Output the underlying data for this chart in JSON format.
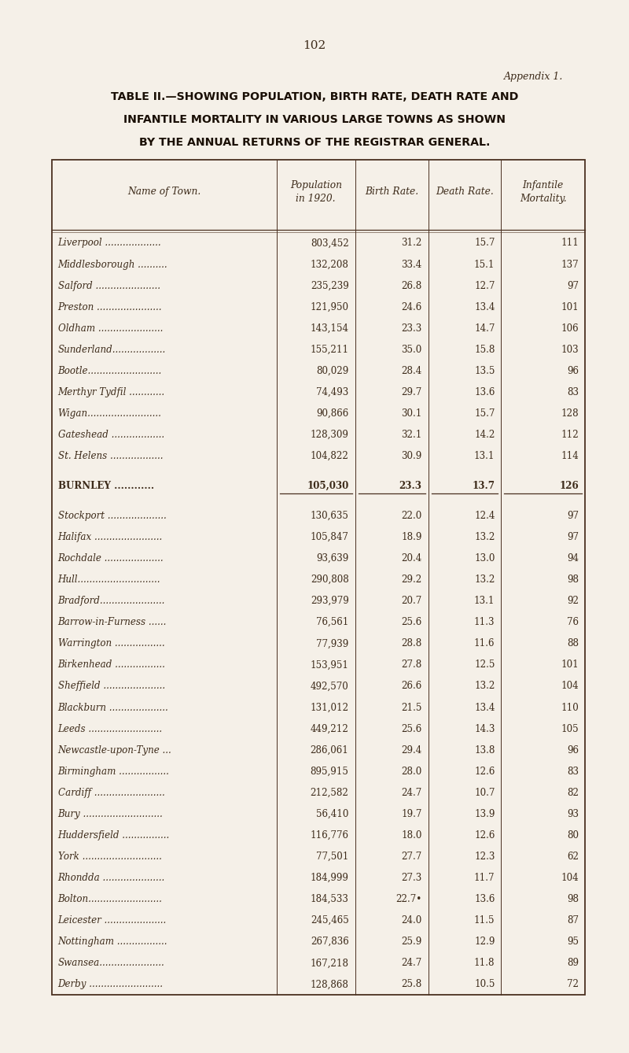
{
  "page_number": "102",
  "appendix_label": "Appendix 1.",
  "title_line1": "TABLE II.—SHOWING POPULATION, BIRTH RATE, DEATH RATE AND",
  "title_line2": "INFANTILE MORTALITY IN VARIOUS LARGE TOWNS AS SHOWN",
  "title_line3": "BY THE ANNUAL RETURNS OF THE REGISTRAR GENERAL.",
  "col_headers": [
    "Name of Town.",
    "Population\nin 1920.",
    "Birth Rate.",
    "Death Rate.",
    "Infantile\nMortality."
  ],
  "rows": [
    [
      "Liverpool",
      "803,452",
      "31.2",
      "15.7",
      "111"
    ],
    [
      "Middlesborough",
      "132,208",
      "33.4",
      "15.1",
      "137"
    ],
    [
      "Salford",
      "235,239",
      "26.8",
      "12.7",
      "97"
    ],
    [
      "Preston",
      "121,950",
      "24.6",
      "13.4",
      "101"
    ],
    [
      "Oldham",
      "143,154",
      "23.3",
      "14.7",
      "106"
    ],
    [
      "Sunderland",
      "155,211",
      "35.0",
      "15.8",
      "103"
    ],
    [
      "Bootle",
      "80,029",
      "28.4",
      "13.5",
      "96"
    ],
    [
      "Merthyr Tydfil",
      "74,493",
      "29.7",
      "13.6",
      "83"
    ],
    [
      "Wigan",
      "90,866",
      "30.1",
      "15.7",
      "128"
    ],
    [
      "Gateshead",
      "128,309",
      "32.1",
      "14.2",
      "112"
    ],
    [
      "St. Helens",
      "104,822",
      "30.9",
      "13.1",
      "114"
    ],
    [
      "BURNLEY",
      "105,030",
      "23.3",
      "13.7",
      "126"
    ],
    [
      "Stockport",
      "130,635",
      "22.0",
      "12.4",
      "97"
    ],
    [
      "Halifax",
      "105,847",
      "18.9",
      "13.2",
      "97"
    ],
    [
      "Rochdale",
      "93,639",
      "20.4",
      "13.0",
      "94"
    ],
    [
      "Hull",
      "290,808",
      "29.2",
      "13.2",
      "98"
    ],
    [
      "Bradford",
      "293,979",
      "20.7",
      "13.1",
      "92"
    ],
    [
      "Barrow-in-Furness",
      "76,561",
      "25.6",
      "11.3",
      "76"
    ],
    [
      "Warrington",
      "77,939",
      "28.8",
      "11.6",
      "88"
    ],
    [
      "Birkenhead",
      "153,951",
      "27.8",
      "12.5",
      "101"
    ],
    [
      "Sheffield",
      "492,570",
      "26.6",
      "13.2",
      "104"
    ],
    [
      "Blackburn",
      "131,012",
      "21.5",
      "13.4",
      "110"
    ],
    [
      "Leeds",
      "449,212",
      "25.6",
      "14.3",
      "105"
    ],
    [
      "Newcastle-upon-Tyne ...",
      "286,061",
      "29.4",
      "13.8",
      "96"
    ],
    [
      "Birmingham",
      "895,915",
      "28.0",
      "12.6",
      "83"
    ],
    [
      "Cardiff",
      "212,582",
      "24.7",
      "10.7",
      "82"
    ],
    [
      "Bury",
      "56,410",
      "19.7",
      "13.9",
      "93"
    ],
    [
      "Huddersfield",
      "116,776",
      "18.0",
      "12.6",
      "80"
    ],
    [
      "York",
      "77,501",
      "27.7",
      "12.3",
      "62"
    ],
    [
      "Rhondda",
      "184,999",
      "27.3",
      "11.7",
      "104"
    ],
    [
      "Bolton",
      "184,533",
      "22.7•",
      "13.6",
      "98"
    ],
    [
      "Leicester",
      "245,465",
      "24.0",
      "11.5",
      "87"
    ],
    [
      "Nottingham",
      "267,836",
      "25.9",
      "12.9",
      "95"
    ],
    [
      "Swansea",
      "167,218",
      "24.7",
      "11.8",
      "89"
    ],
    [
      "Derby",
      "128,868",
      "25.8",
      "10.5",
      "72"
    ]
  ],
  "burnley_row_index": 11,
  "bg_color": "#f5f0e8",
  "text_color": "#3d2b1a",
  "line_color": "#4a3020",
  "title_color": "#1a0f05",
  "name_col_dots": [
    "Liverpool ...................",
    "Middlesborough ..........",
    "Salford ......................",
    "Preston ......................",
    "Oldham ......................",
    "Sunderland..................",
    "Bootle.........................",
    "Merthyr Tydfil ............",
    "Wigan.........................",
    "Gateshead ..................",
    "St. Helens ..................",
    "BURNLEY ............",
    "Stockport ....................",
    "Halifax .......................",
    "Rochdale ....................",
    "Hull............................",
    "Bradford......................",
    "Barrow-in-Furness ......",
    "Warrington .................",
    "Birkenhead .................",
    "Sheffield .....................",
    "Blackburn ....................",
    "Leeds .........................",
    "Newcastle-upon-Tyne ...",
    "Birmingham .................",
    "Cardiff ........................",
    "Bury ...........................",
    "Huddersfield ................",
    "York ...........................",
    "Rhondda .....................",
    "Bolton.........................",
    "Leicester .....................",
    "Nottingham .................",
    "Swansea......................",
    "Derby ........................."
  ]
}
